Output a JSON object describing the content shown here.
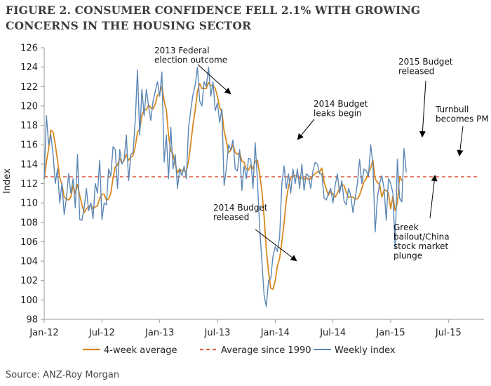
{
  "title": "FIGURE 2. CONSUMER CONFIDENCE FELL 2.1% WITH GROWING CONCERNS IN THE HOUSING SECTOR",
  "source": "Source: ANZ-Roy Morgan",
  "colors": {
    "weekly": "#5b86b5",
    "avg4": "#d8881e",
    "avg1990": "#d9654a",
    "axis": "#999999",
    "text": "#222222"
  },
  "chart_data": {
    "type": "line",
    "title": "FIGURE 2. CONSUMER CONFIDENCE FELL 2.1% WITH GROWING CONCERNS IN THE HOUSING SECTOR",
    "ylabel": "Index",
    "xlabel": "",
    "ylim": [
      98,
      126
    ],
    "xlim": [
      0,
      198
    ],
    "yticks": [
      98,
      100,
      102,
      104,
      106,
      108,
      110,
      112,
      114,
      116,
      118,
      120,
      122,
      124,
      126
    ],
    "xticks": [
      {
        "x": 0,
        "label": "Jan-12"
      },
      {
        "x": 26,
        "label": "Jul-12"
      },
      {
        "x": 52,
        "label": "Jan-13"
      },
      {
        "x": 78,
        "label": "Jul-13"
      },
      {
        "x": 104,
        "label": "Jan-14"
      },
      {
        "x": 130,
        "label": "Jul-14"
      },
      {
        "x": 156,
        "label": "Jan-15"
      },
      {
        "x": 182,
        "label": "Jul-15"
      }
    ],
    "grid": false,
    "legend_position": "bottom",
    "series": [
      {
        "name": "Weekly index",
        "color": "#5b86b5",
        "values": [
          112.5,
          119,
          116,
          117,
          115,
          112,
          113.5,
          110,
          112,
          108.8,
          110.5,
          113,
          111,
          112.5,
          109.5,
          115,
          108.3,
          108.2,
          109.5,
          111.5,
          109.2,
          110,
          108.4,
          112,
          111,
          114.4,
          108.3,
          110,
          109.8,
          113.5,
          112.8,
          115.8,
          115.5,
          111.5,
          115.5,
          114,
          114.5,
          117,
          112.3,
          115,
          115.2,
          118.5,
          123.7,
          117,
          121.7,
          119,
          121.7,
          120,
          118.5,
          120.5,
          121.5,
          122.5,
          121,
          123.5,
          114.2,
          117,
          112.5,
          117.8,
          113.5,
          115,
          111.5,
          113.5,
          112.8,
          113.8,
          112.5,
          117.8,
          119.6,
          121.2,
          122.2,
          124,
          120.5,
          120,
          122.5,
          122,
          124,
          121,
          122.5,
          119.5,
          120.3,
          118.3,
          119.7,
          111.8,
          113.5,
          116,
          115.5,
          116.5,
          113.5,
          113.3,
          115.5,
          111.3,
          113.8,
          112.5,
          114.6,
          114.5,
          111.5,
          116.2,
          112.3,
          107.5,
          104,
          100.5,
          99.3,
          102,
          102.2,
          104.5,
          105.5,
          105,
          106.5,
          112,
          113.8,
          111.5,
          113,
          111,
          113.5,
          112,
          113.5,
          111.5,
          114,
          111.3,
          113,
          112.8,
          111.5,
          113.3,
          114.2,
          114,
          113,
          113,
          110.5,
          110.3,
          111,
          111.5,
          110,
          111.8,
          113,
          111,
          112.3,
          110.2,
          109.8,
          111.5,
          110.8,
          109,
          110.5,
          112,
          114.5,
          112,
          113.5,
          113.3,
          112.8,
          116,
          114,
          107,
          110.5,
          112,
          112.8,
          111.5,
          108.2,
          112.5,
          112,
          111,
          105.3,
          114.5,
          110.5,
          110.1,
          115.6,
          113.2
        ]
      },
      {
        "name": "4-week average",
        "color": "#d8881e",
        "values": [
          112.5,
          114.2,
          115.6,
          117.5,
          117.3,
          116.0,
          114.4,
          112.6,
          111.9,
          110.6,
          110.4,
          110.3,
          110.6,
          111.8,
          111.0,
          111.9,
          110.8,
          109.8,
          109.0,
          109.4,
          109.6,
          109.8,
          109.4,
          109.6,
          109.7,
          110.5,
          110.9,
          110.9,
          110.3,
          110.4,
          111.0,
          112.6,
          113.7,
          113.9,
          114.6,
          114.1,
          114.4,
          115.0,
          114.4,
          114.7,
          114.9,
          115.8,
          117.3,
          117.6,
          119.0,
          119.6,
          119.6,
          120.1,
          119.8,
          119.7,
          120.2,
          121.1,
          121.3,
          122.0,
          120.5,
          119.6,
          116.9,
          115.4,
          115.0,
          114.0,
          113.1,
          113.5,
          113.3,
          113.3,
          113.3,
          114.3,
          116.1,
          118.1,
          119.6,
          121.5,
          122.3,
          121.8,
          121.8,
          121.8,
          122.4,
          122.1,
          122.1,
          121.8,
          121.0,
          119.8,
          119.4,
          117.4,
          116.4,
          115.2,
          115.4,
          116.0,
          115.2,
          115.0,
          115.2,
          114.3,
          114.2,
          113.5,
          113.4,
          113.9,
          113.5,
          114.3,
          114.4,
          113.0,
          111.3,
          108.6,
          105.2,
          102.9,
          101.2,
          101.1,
          102.0,
          103.5,
          104.3,
          106.0,
          107.9,
          110.3,
          111.7,
          112.6,
          112.8,
          112.8,
          112.8,
          112.5,
          112.6,
          112.4,
          112.6,
          112.4,
          112.5,
          112.8,
          113.0,
          113.2,
          113.2,
          113.6,
          112.2,
          111.4,
          110.8,
          111.2,
          110.9,
          110.6,
          111.0,
          111.5,
          111.9,
          111.8,
          111.1,
          110.6,
          110.6,
          110.6,
          110.4,
          110.4,
          110.8,
          111.5,
          112.2,
          112.5,
          113.1,
          113.6,
          114.4,
          112.5,
          112.1,
          111.9,
          110.6,
          111.3,
          111.3,
          111.0,
          109.4,
          110.7,
          109.2,
          110.0,
          112.7,
          112.3
        ]
      },
      {
        "name": "Average since 1990",
        "color": "#d9654a",
        "values": [
          112.7
        ]
      }
    ],
    "annotations": [
      {
        "lines": [
          "2013 Federal",
          "election outcome"
        ]
      },
      {
        "lines": [
          "2014 Budget",
          "leaks begin"
        ]
      },
      {
        "lines": [
          "2014 Budget",
          "released"
        ]
      },
      {
        "lines": [
          "2015 Budget",
          "released"
        ]
      },
      {
        "lines": [
          "Turnbull",
          "becomes PM"
        ]
      },
      {
        "lines": [
          "Greek",
          "bailout/China",
          "stock market",
          "plunge"
        ]
      }
    ]
  },
  "legend": [
    {
      "label": "4-week average",
      "key": "avg4"
    },
    {
      "label": "Average since 1990",
      "key": "avg1990"
    },
    {
      "label": "Weekly index",
      "key": "weekly"
    }
  ]
}
